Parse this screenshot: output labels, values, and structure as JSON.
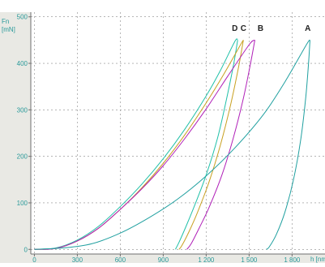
{
  "chart_data": {
    "type": "line",
    "title": "",
    "xlabel": "h [nm]",
    "ylabel": "Fn [mN]",
    "y_unit_line1": "Fn",
    "y_unit_line2": "[mN]",
    "xlim": [
      -25,
      2030
    ],
    "ylim": [
      -10,
      510
    ],
    "x_ticks": [
      0,
      300,
      600,
      900,
      1200,
      1500,
      1800
    ],
    "x_tick_labels": [
      "0",
      "300",
      "600",
      "900",
      "1 200",
      "1 500",
      "1 800"
    ],
    "y_ticks": [
      0,
      100,
      200,
      300,
      400,
      500
    ],
    "y_tick_labels": [
      "0",
      "100",
      "200",
      "300",
      "400",
      "500"
    ],
    "grid": true,
    "legend": "none",
    "curve_labels": [
      {
        "text": "D",
        "x": 1400,
        "y": 470
      },
      {
        "text": "C",
        "x": 1460,
        "y": 470
      },
      {
        "text": "B",
        "x": 1580,
        "y": 470
      },
      {
        "text": "A",
        "x": 1910,
        "y": 470
      }
    ],
    "series": [
      {
        "curve": "D",
        "color": "#20c0a8",
        "loading": [
          [
            0,
            0
          ],
          [
            150,
            3
          ],
          [
            300,
            20
          ],
          [
            450,
            50
          ],
          [
            600,
            92
          ],
          [
            750,
            140
          ],
          [
            900,
            195
          ],
          [
            1050,
            258
          ],
          [
            1200,
            330
          ],
          [
            1300,
            385
          ],
          [
            1400,
            447
          ],
          [
            1420,
            450
          ]
        ],
        "unloading": [
          [
            1420,
            450
          ],
          [
            1390,
            395
          ],
          [
            1340,
            320
          ],
          [
            1280,
            240
          ],
          [
            1200,
            160
          ],
          [
            1120,
            95
          ],
          [
            1060,
            50
          ],
          [
            1010,
            15
          ],
          [
            985,
            0
          ]
        ]
      },
      {
        "curve": "C",
        "color": "#c8a020",
        "loading": [
          [
            0,
            0
          ],
          [
            150,
            2
          ],
          [
            300,
            18
          ],
          [
            450,
            46
          ],
          [
            600,
            86
          ],
          [
            750,
            132
          ],
          [
            900,
            185
          ],
          [
            1050,
            246
          ],
          [
            1200,
            315
          ],
          [
            1320,
            375
          ],
          [
            1440,
            440
          ],
          [
            1460,
            450
          ]
        ],
        "unloading": [
          [
            1460,
            450
          ],
          [
            1425,
            390
          ],
          [
            1370,
            310
          ],
          [
            1300,
            225
          ],
          [
            1220,
            145
          ],
          [
            1140,
            80
          ],
          [
            1080,
            38
          ],
          [
            1030,
            8
          ],
          [
            1010,
            0
          ]
        ]
      },
      {
        "curve": "B",
        "color": "#b020b8",
        "loading": [
          [
            0,
            0
          ],
          [
            150,
            2
          ],
          [
            300,
            18
          ],
          [
            450,
            46
          ],
          [
            600,
            86
          ],
          [
            750,
            130
          ],
          [
            900,
            180
          ],
          [
            1050,
            238
          ],
          [
            1200,
            302
          ],
          [
            1350,
            372
          ],
          [
            1500,
            440
          ],
          [
            1540,
            450
          ]
        ],
        "unloading": [
          [
            1540,
            450
          ],
          [
            1510,
            400
          ],
          [
            1460,
            325
          ],
          [
            1390,
            240
          ],
          [
            1310,
            160
          ],
          [
            1220,
            90
          ],
          [
            1150,
            45
          ],
          [
            1095,
            12
          ],
          [
            1065,
            0
          ]
        ]
      },
      {
        "curve": "A",
        "color": "#20a0a0",
        "loading": [
          [
            0,
            0
          ],
          [
            200,
            3
          ],
          [
            400,
            12
          ],
          [
            600,
            35
          ],
          [
            800,
            68
          ],
          [
            1000,
            108
          ],
          [
            1200,
            158
          ],
          [
            1400,
            218
          ],
          [
            1600,
            290
          ],
          [
            1750,
            360
          ],
          [
            1900,
            440
          ],
          [
            1925,
            450
          ]
        ],
        "unloading": [
          [
            1925,
            450
          ],
          [
            1915,
            400
          ],
          [
            1895,
            325
          ],
          [
            1860,
            235
          ],
          [
            1810,
            150
          ],
          [
            1750,
            80
          ],
          [
            1690,
            32
          ],
          [
            1640,
            5
          ],
          [
            1620,
            0
          ]
        ]
      }
    ]
  }
}
